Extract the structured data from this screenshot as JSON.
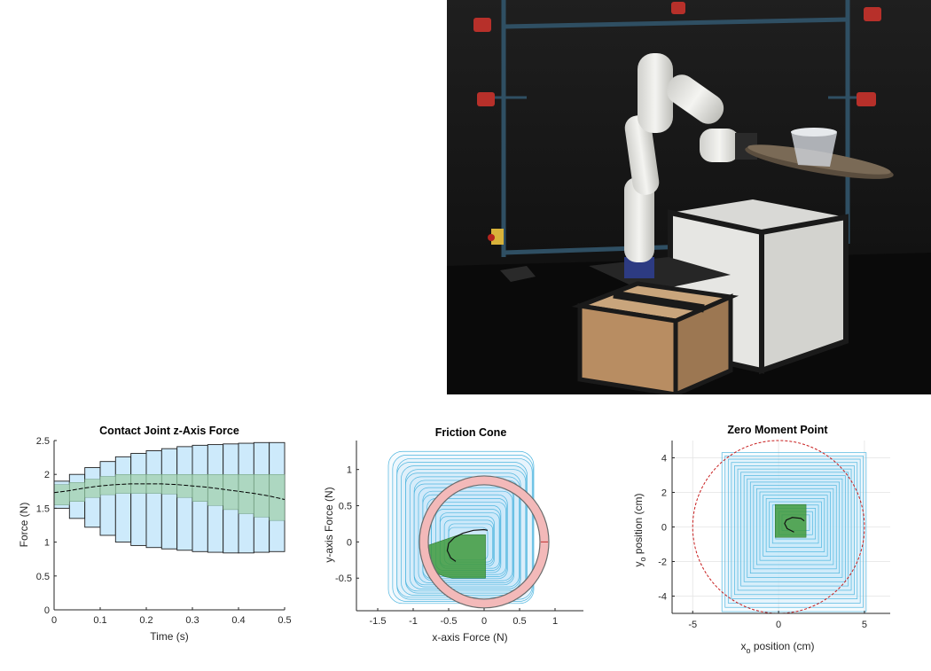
{
  "photo": {
    "description_icons": [
      "robot-arm-icon",
      "tray-icon",
      "box-icon",
      "motion-capture-camera-icon"
    ],
    "colors": {
      "backdrop": "#151515",
      "frame": "#2f4f63",
      "robot": "#ecebe8",
      "box_dark": "#23201c",
      "cardboard": "#c8a27a",
      "tray": "#6b5d4d"
    }
  },
  "charts": {
    "force": {
      "title": "Contact Joint z-Axis Force",
      "xlabel": "Time (s)",
      "ylabel": "Force (N)",
      "xticks": [
        "0",
        "0.1",
        "0.2",
        "0.3",
        "0.4",
        "0.5"
      ],
      "yticks": [
        "0",
        "0.5",
        "1",
        "1.5",
        "2",
        "2.5"
      ]
    },
    "cone": {
      "title": "Friction Cone",
      "xlabel": "x-axis Force (N)",
      "ylabel": "y-axis Force (N)",
      "xticks": [
        "-1.5",
        "-1",
        "-0.5",
        "0",
        "0.5",
        "1"
      ],
      "yticks": [
        "-0.5",
        "0",
        "0.5",
        "1"
      ]
    },
    "zmp": {
      "title": "Zero Moment Point",
      "xlabel_main": "x",
      "xlabel_sub": "o",
      "xlabel_rest": " position (cm)",
      "ylabel_main": "y",
      "ylabel_sub": "o",
      "ylabel_rest": " position (cm)",
      "xticks": [
        "-5",
        "0",
        "5"
      ],
      "yticks": [
        "-4",
        "-2",
        "0",
        "2",
        "4"
      ]
    }
  },
  "chart_data": [
    {
      "type": "area",
      "title": "Contact Joint z-Axis Force",
      "xlabel": "Time (s)",
      "ylabel": "Force (N)",
      "xlim": [
        0,
        0.5
      ],
      "ylim": [
        0,
        2.5
      ],
      "grid": false,
      "x": [
        0,
        0.0333,
        0.0667,
        0.1,
        0.1333,
        0.1667,
        0.2,
        0.2333,
        0.2667,
        0.3,
        0.3333,
        0.3667,
        0.4,
        0.4333,
        0.4667,
        0.5
      ],
      "series": [
        {
          "values": [
            1.73,
            1.76,
            1.8,
            1.83,
            1.85,
            1.86,
            1.86,
            1.86,
            1.85,
            1.83,
            1.81,
            1.78,
            1.75,
            1.72,
            1.68,
            1.63
          ]
        }
      ],
      "outer_lower": [
        1.5,
        1.35,
        1.22,
        1.1,
        1.0,
        0.95,
        0.92,
        0.9,
        0.88,
        0.86,
        0.85,
        0.84,
        0.84,
        0.85,
        0.86,
        0.87
      ],
      "outer_upper": [
        1.9,
        2.0,
        2.1,
        2.19,
        2.26,
        2.31,
        2.35,
        2.38,
        2.41,
        2.43,
        2.44,
        2.45,
        2.46,
        2.47,
        2.47,
        2.48
      ],
      "inner_lower": [
        1.55,
        1.6,
        1.66,
        1.7,
        1.72,
        1.72,
        1.72,
        1.71,
        1.66,
        1.6,
        1.54,
        1.48,
        1.42,
        1.37,
        1.32,
        1.28
      ],
      "inner_upper": [
        1.85,
        1.88,
        1.93,
        1.97,
        2.0,
        2.0,
        2.0,
        2.0,
        2.0,
        2.0,
        2.0,
        2.0,
        2.0,
        2.0,
        2.0,
        2.0
      ]
    },
    {
      "type": "line",
      "title": "Friction Cone",
      "xlabel": "x-axis Force (N)",
      "ylabel": "y-axis Force (N)",
      "xlim": [
        -1.8,
        1.4
      ],
      "ylim": [
        -0.95,
        1.4
      ],
      "grid": false,
      "cone_radius": 0.85,
      "series": [
        {
          "x": [
            -0.4,
            -0.47,
            -0.52,
            -0.5,
            -0.42,
            -0.3,
            -0.15,
            0,
            0.05
          ],
          "y": [
            -0.27,
            -0.22,
            -0.12,
            -0.02,
            0.06,
            0.12,
            0.16,
            0.17,
            0.16
          ]
        }
      ]
    },
    {
      "type": "line",
      "title": "Zero Moment Point",
      "xlabel": "xo position (cm)",
      "ylabel": "yo position (cm)",
      "xlim": [
        -6.2,
        6.5
      ],
      "ylim": [
        -5,
        5
      ],
      "grid": true,
      "stability_radius": 5,
      "series": [
        {
          "x": [
            0.9,
            0.5,
            0.35,
            0.45,
            0.8,
            1.3,
            1.5
          ],
          "y": [
            -0.3,
            -0.1,
            0.2,
            0.4,
            0.55,
            0.5,
            0.35
          ]
        }
      ]
    }
  ]
}
